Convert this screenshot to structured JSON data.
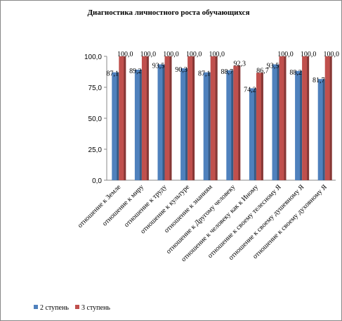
{
  "chart_data": {
    "type": "bar",
    "title": "Диагностика личностного роста обучающихся",
    "categories": [
      "отношение к Земле",
      "отношение к миру",
      "отношение к труду",
      "отношение к культуре",
      "отношение к знаниям",
      "отношение к Другому человеку",
      "отношение к  человеку как к Иному",
      "отношение к своему телесному Я",
      "отношение к своему душевному Я",
      "отношение к своему духовному Я"
    ],
    "series": [
      {
        "name": "2 ступень",
        "color": "#4f81bd",
        "values": [
          87.1,
          89.2,
          93.5,
          90.3,
          87.1,
          88.7,
          74.2,
          93.5,
          88.2,
          81.7
        ],
        "value_labels": [
          "87,1",
          "89,2",
          "93,5",
          "90,3",
          "87,1",
          "88,7",
          "74,2",
          "93,5",
          "88,2",
          "81,7"
        ]
      },
      {
        "name": "3 ступень",
        "color": "#c0504d",
        "values": [
          100,
          100,
          100,
          100,
          100,
          92.3,
          86.7,
          100,
          100,
          100
        ],
        "value_labels": [
          "100,0",
          "100,0",
          "100,0",
          "100,0",
          "100,0",
          "92,3",
          "86,7",
          "100,0",
          "100,0",
          "100,0"
        ]
      }
    ],
    "ylim": [
      0,
      100
    ],
    "yticks": [
      {
        "value": 0,
        "label": "0,0"
      },
      {
        "value": 25,
        "label": "25,0"
      },
      {
        "value": 50,
        "label": "50,0"
      },
      {
        "value": 75,
        "label": "75,0"
      },
      {
        "value": 100,
        "label": "100,0"
      }
    ],
    "grid": false
  }
}
